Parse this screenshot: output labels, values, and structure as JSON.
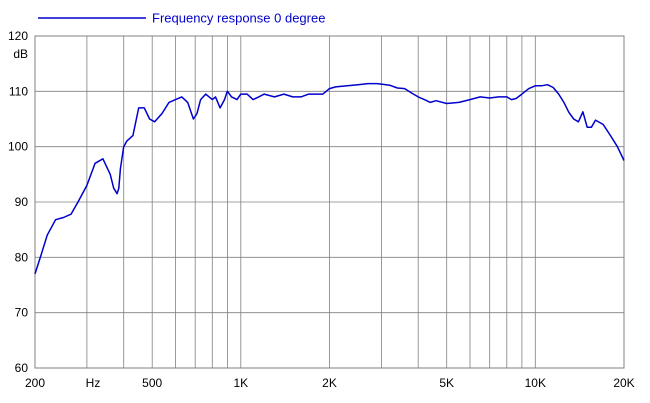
{
  "chart_data": {
    "type": "line",
    "title": "",
    "legend": {
      "position": "top-left",
      "entries": [
        "Frequency response 0 degree"
      ]
    },
    "xlabel": "Hz",
    "ylabel": "dB",
    "x_scale": "log",
    "xlim": [
      200,
      20000
    ],
    "ylim": [
      60,
      120
    ],
    "grid": true,
    "x_ticks": [
      {
        "value": 200,
        "label": "200"
      },
      {
        "value": 500,
        "label": "500"
      },
      {
        "value": 1000,
        "label": "1K"
      },
      {
        "value": 2000,
        "label": "2K"
      },
      {
        "value": 5000,
        "label": "5K"
      },
      {
        "value": 10000,
        "label": "10K"
      },
      {
        "value": 20000,
        "label": "20K"
      }
    ],
    "y_ticks": [
      {
        "value": 120,
        "label": "120"
      },
      {
        "value": 110,
        "label": "110"
      },
      {
        "value": 100,
        "label": "100"
      },
      {
        "value": 90,
        "label": "90"
      },
      {
        "value": 80,
        "label": "80"
      },
      {
        "value": 70,
        "label": "70"
      },
      {
        "value": 60,
        "label": "60"
      }
    ],
    "color": "#0000cc",
    "series": [
      {
        "name": "Frequency response 0 degree",
        "x": [
          200,
          210,
          220,
          235,
          250,
          265,
          280,
          300,
          320,
          340,
          360,
          370,
          380,
          385,
          390,
          400,
          410,
          430,
          450,
          470,
          490,
          510,
          540,
          570,
          600,
          630,
          660,
          690,
          710,
          730,
          760,
          800,
          820,
          850,
          880,
          900,
          930,
          970,
          1000,
          1050,
          1100,
          1150,
          1200,
          1300,
          1400,
          1500,
          1600,
          1700,
          1800,
          1900,
          2000,
          2100,
          2300,
          2500,
          2700,
          2900,
          3000,
          3200,
          3400,
          3600,
          3800,
          4000,
          4200,
          4400,
          4600,
          5000,
          5500,
          6000,
          6500,
          7000,
          7500,
          8000,
          8300,
          8600,
          9000,
          9500,
          10000,
          10500,
          11000,
          11500,
          12000,
          12500,
          13000,
          13500,
          14000,
          14500,
          15000,
          15500,
          16000,
          17000,
          18000,
          19000,
          20000
        ],
        "y": [
          77,
          80.5,
          84,
          86.8,
          87.2,
          87.8,
          90,
          93,
          97,
          97.8,
          95,
          92.5,
          91.5,
          92.5,
          96,
          100,
          101,
          102,
          107,
          107,
          105,
          104.5,
          106,
          108,
          108.5,
          109,
          108,
          105,
          106,
          108.5,
          109.5,
          108.5,
          109,
          107,
          108.5,
          110,
          109,
          108.5,
          109.5,
          109.5,
          108.5,
          109,
          109.5,
          109,
          109.5,
          109,
          109,
          109.5,
          109.5,
          109.5,
          110.5,
          110.8,
          111,
          111.2,
          111.4,
          111.4,
          111.3,
          111.1,
          110.6,
          110.5,
          109.7,
          109,
          108.5,
          108,
          108.3,
          107.8,
          108,
          108.5,
          109,
          108.8,
          109,
          109,
          108.5,
          108.7,
          109.5,
          110.5,
          111,
          111,
          111.2,
          110.7,
          109.5,
          108,
          106.2,
          105,
          104.5,
          106.3,
          103.5,
          103.5,
          104.8,
          104,
          102,
          100,
          97.5
        ]
      }
    ]
  }
}
